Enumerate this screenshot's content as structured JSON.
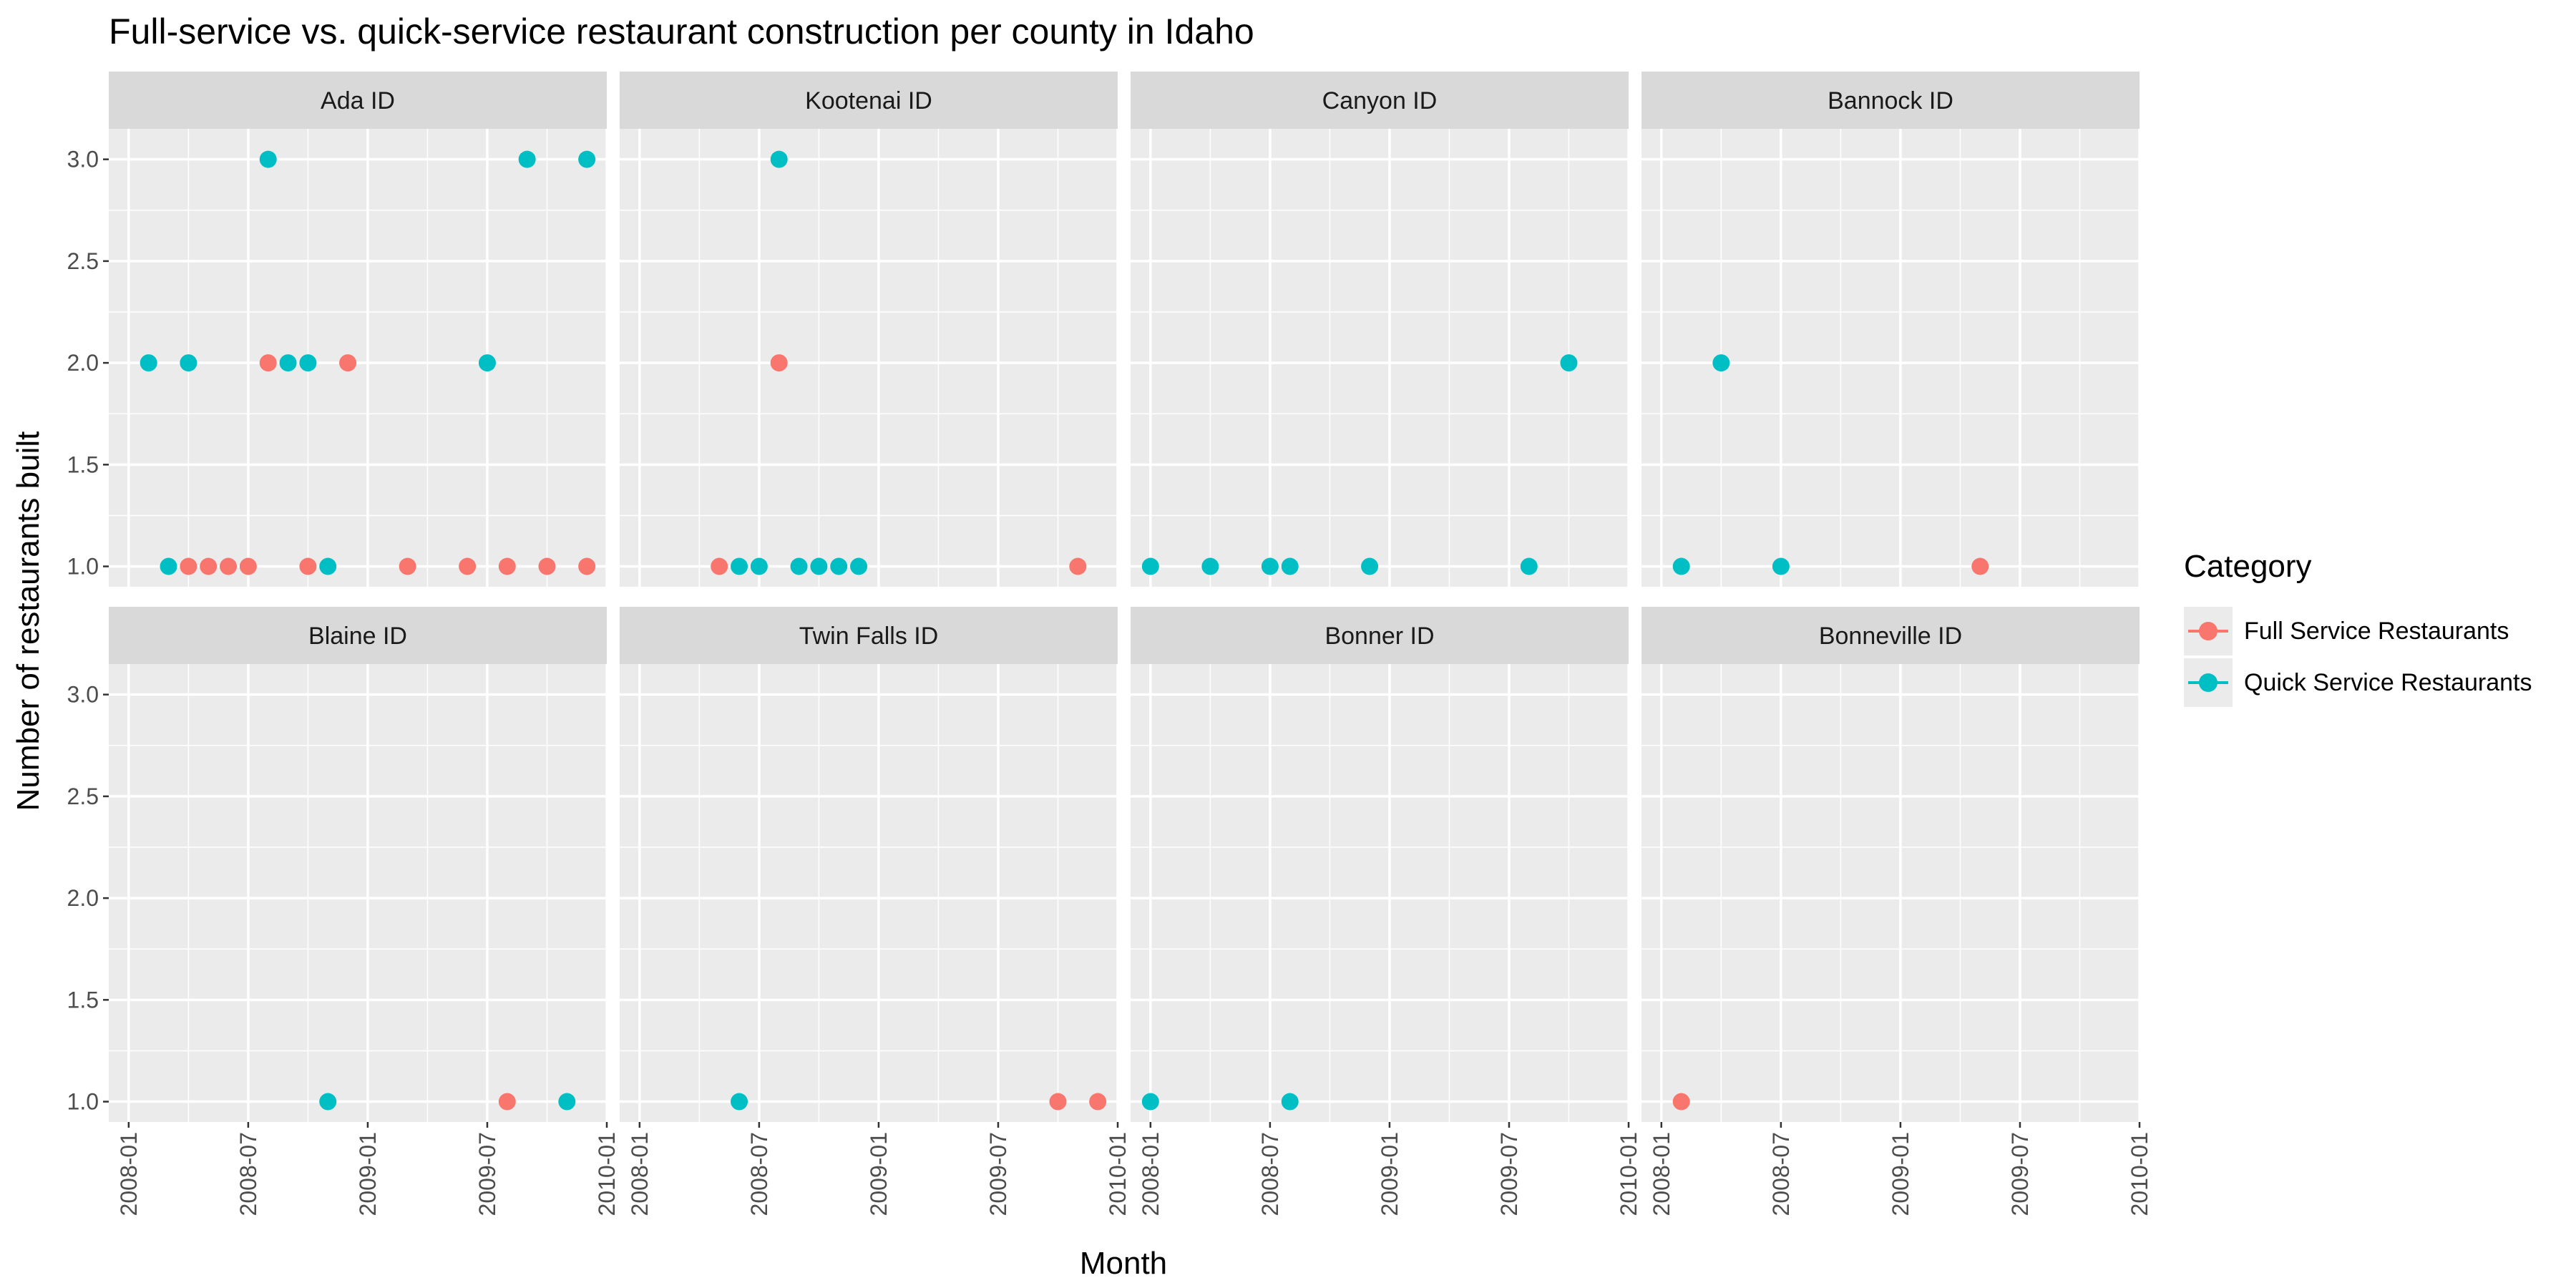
{
  "chart_data": {
    "type": "scatter",
    "title": "Full-service vs. quick-service restaurant construction per county in Idaho",
    "xlabel": "Month",
    "ylabel": "Number of restaurants built",
    "xlim": [
      "2007-12",
      "2010-01"
    ],
    "ylim": [
      0.9,
      3.15
    ],
    "x_ticks": [
      "2008-01",
      "2008-07",
      "2009-01",
      "2009-07",
      "2010-01"
    ],
    "y_ticks": [
      "1.0",
      "1.5",
      "2.0",
      "2.5",
      "3.0"
    ],
    "grid": true,
    "legend": {
      "title": "Category",
      "position": "right",
      "entries": [
        "Full Service Restaurants",
        "Quick Service Restaurants"
      ]
    },
    "colors": {
      "Full Service Restaurants": "#F8766D",
      "Quick Service Restaurants": "#00BFC4"
    },
    "panels": [
      {
        "label": "Ada ID",
        "series": [
          {
            "name": "Full Service Restaurants",
            "points": [
              {
                "x": "2008-04",
                "y": 1
              },
              {
                "x": "2008-05",
                "y": 1
              },
              {
                "x": "2008-06",
                "y": 1
              },
              {
                "x": "2008-07",
                "y": 1
              },
              {
                "x": "2008-08",
                "y": 2
              },
              {
                "x": "2008-10",
                "y": 1
              },
              {
                "x": "2008-12",
                "y": 2
              },
              {
                "x": "2009-03",
                "y": 1
              },
              {
                "x": "2009-06",
                "y": 1
              },
              {
                "x": "2009-08",
                "y": 1
              },
              {
                "x": "2009-10",
                "y": 1
              },
              {
                "x": "2009-12",
                "y": 1
              }
            ]
          },
          {
            "name": "Quick Service Restaurants",
            "points": [
              {
                "x": "2008-02",
                "y": 2
              },
              {
                "x": "2008-03",
                "y": 1
              },
              {
                "x": "2008-04",
                "y": 2
              },
              {
                "x": "2008-08",
                "y": 3
              },
              {
                "x": "2008-09",
                "y": 2
              },
              {
                "x": "2008-10",
                "y": 2
              },
              {
                "x": "2008-11",
                "y": 1
              },
              {
                "x": "2009-07",
                "y": 2
              },
              {
                "x": "2009-09",
                "y": 3
              },
              {
                "x": "2009-12",
                "y": 3
              }
            ]
          }
        ]
      },
      {
        "label": "Kootenai ID",
        "series": [
          {
            "name": "Full Service Restaurants",
            "points": [
              {
                "x": "2008-05",
                "y": 1
              },
              {
                "x": "2008-08",
                "y": 2
              },
              {
                "x": "2009-11",
                "y": 1
              }
            ]
          },
          {
            "name": "Quick Service Restaurants",
            "points": [
              {
                "x": "2008-06",
                "y": 1
              },
              {
                "x": "2008-07",
                "y": 1
              },
              {
                "x": "2008-08",
                "y": 3
              },
              {
                "x": "2008-09",
                "y": 1
              },
              {
                "x": "2008-10",
                "y": 1
              },
              {
                "x": "2008-11",
                "y": 1
              },
              {
                "x": "2008-12",
                "y": 1
              }
            ]
          }
        ]
      },
      {
        "label": "Canyon ID",
        "series": [
          {
            "name": "Full Service Restaurants",
            "points": []
          },
          {
            "name": "Quick Service Restaurants",
            "points": [
              {
                "x": "2008-01",
                "y": 1
              },
              {
                "x": "2008-04",
                "y": 1
              },
              {
                "x": "2008-07",
                "y": 1
              },
              {
                "x": "2008-08",
                "y": 1
              },
              {
                "x": "2008-12",
                "y": 1
              },
              {
                "x": "2009-08",
                "y": 1
              },
              {
                "x": "2009-10",
                "y": 2
              }
            ]
          }
        ]
      },
      {
        "label": "Bannock ID",
        "series": [
          {
            "name": "Full Service Restaurants",
            "points": [
              {
                "x": "2009-05",
                "y": 1
              }
            ]
          },
          {
            "name": "Quick Service Restaurants",
            "points": [
              {
                "x": "2008-02",
                "y": 1
              },
              {
                "x": "2008-04",
                "y": 2
              },
              {
                "x": "2008-07",
                "y": 1
              }
            ]
          }
        ]
      },
      {
        "label": "Blaine ID",
        "series": [
          {
            "name": "Full Service Restaurants",
            "points": [
              {
                "x": "2009-08",
                "y": 1
              }
            ]
          },
          {
            "name": "Quick Service Restaurants",
            "points": [
              {
                "x": "2008-11",
                "y": 1
              },
              {
                "x": "2009-11",
                "y": 1
              }
            ]
          }
        ]
      },
      {
        "label": "Twin Falls ID",
        "series": [
          {
            "name": "Full Service Restaurants",
            "points": [
              {
                "x": "2009-10",
                "y": 1
              },
              {
                "x": "2009-12",
                "y": 1
              }
            ]
          },
          {
            "name": "Quick Service Restaurants",
            "points": [
              {
                "x": "2008-06",
                "y": 1
              }
            ]
          }
        ]
      },
      {
        "label": "Bonner ID",
        "series": [
          {
            "name": "Full Service Restaurants",
            "points": []
          },
          {
            "name": "Quick Service Restaurants",
            "points": [
              {
                "x": "2008-01",
                "y": 1
              },
              {
                "x": "2008-08",
                "y": 1
              }
            ]
          }
        ]
      },
      {
        "label": "Bonneville ID",
        "series": [
          {
            "name": "Full Service Restaurants",
            "points": [
              {
                "x": "2008-02",
                "y": 1
              }
            ]
          },
          {
            "name": "Quick Service Restaurants",
            "points": []
          }
        ]
      }
    ]
  }
}
